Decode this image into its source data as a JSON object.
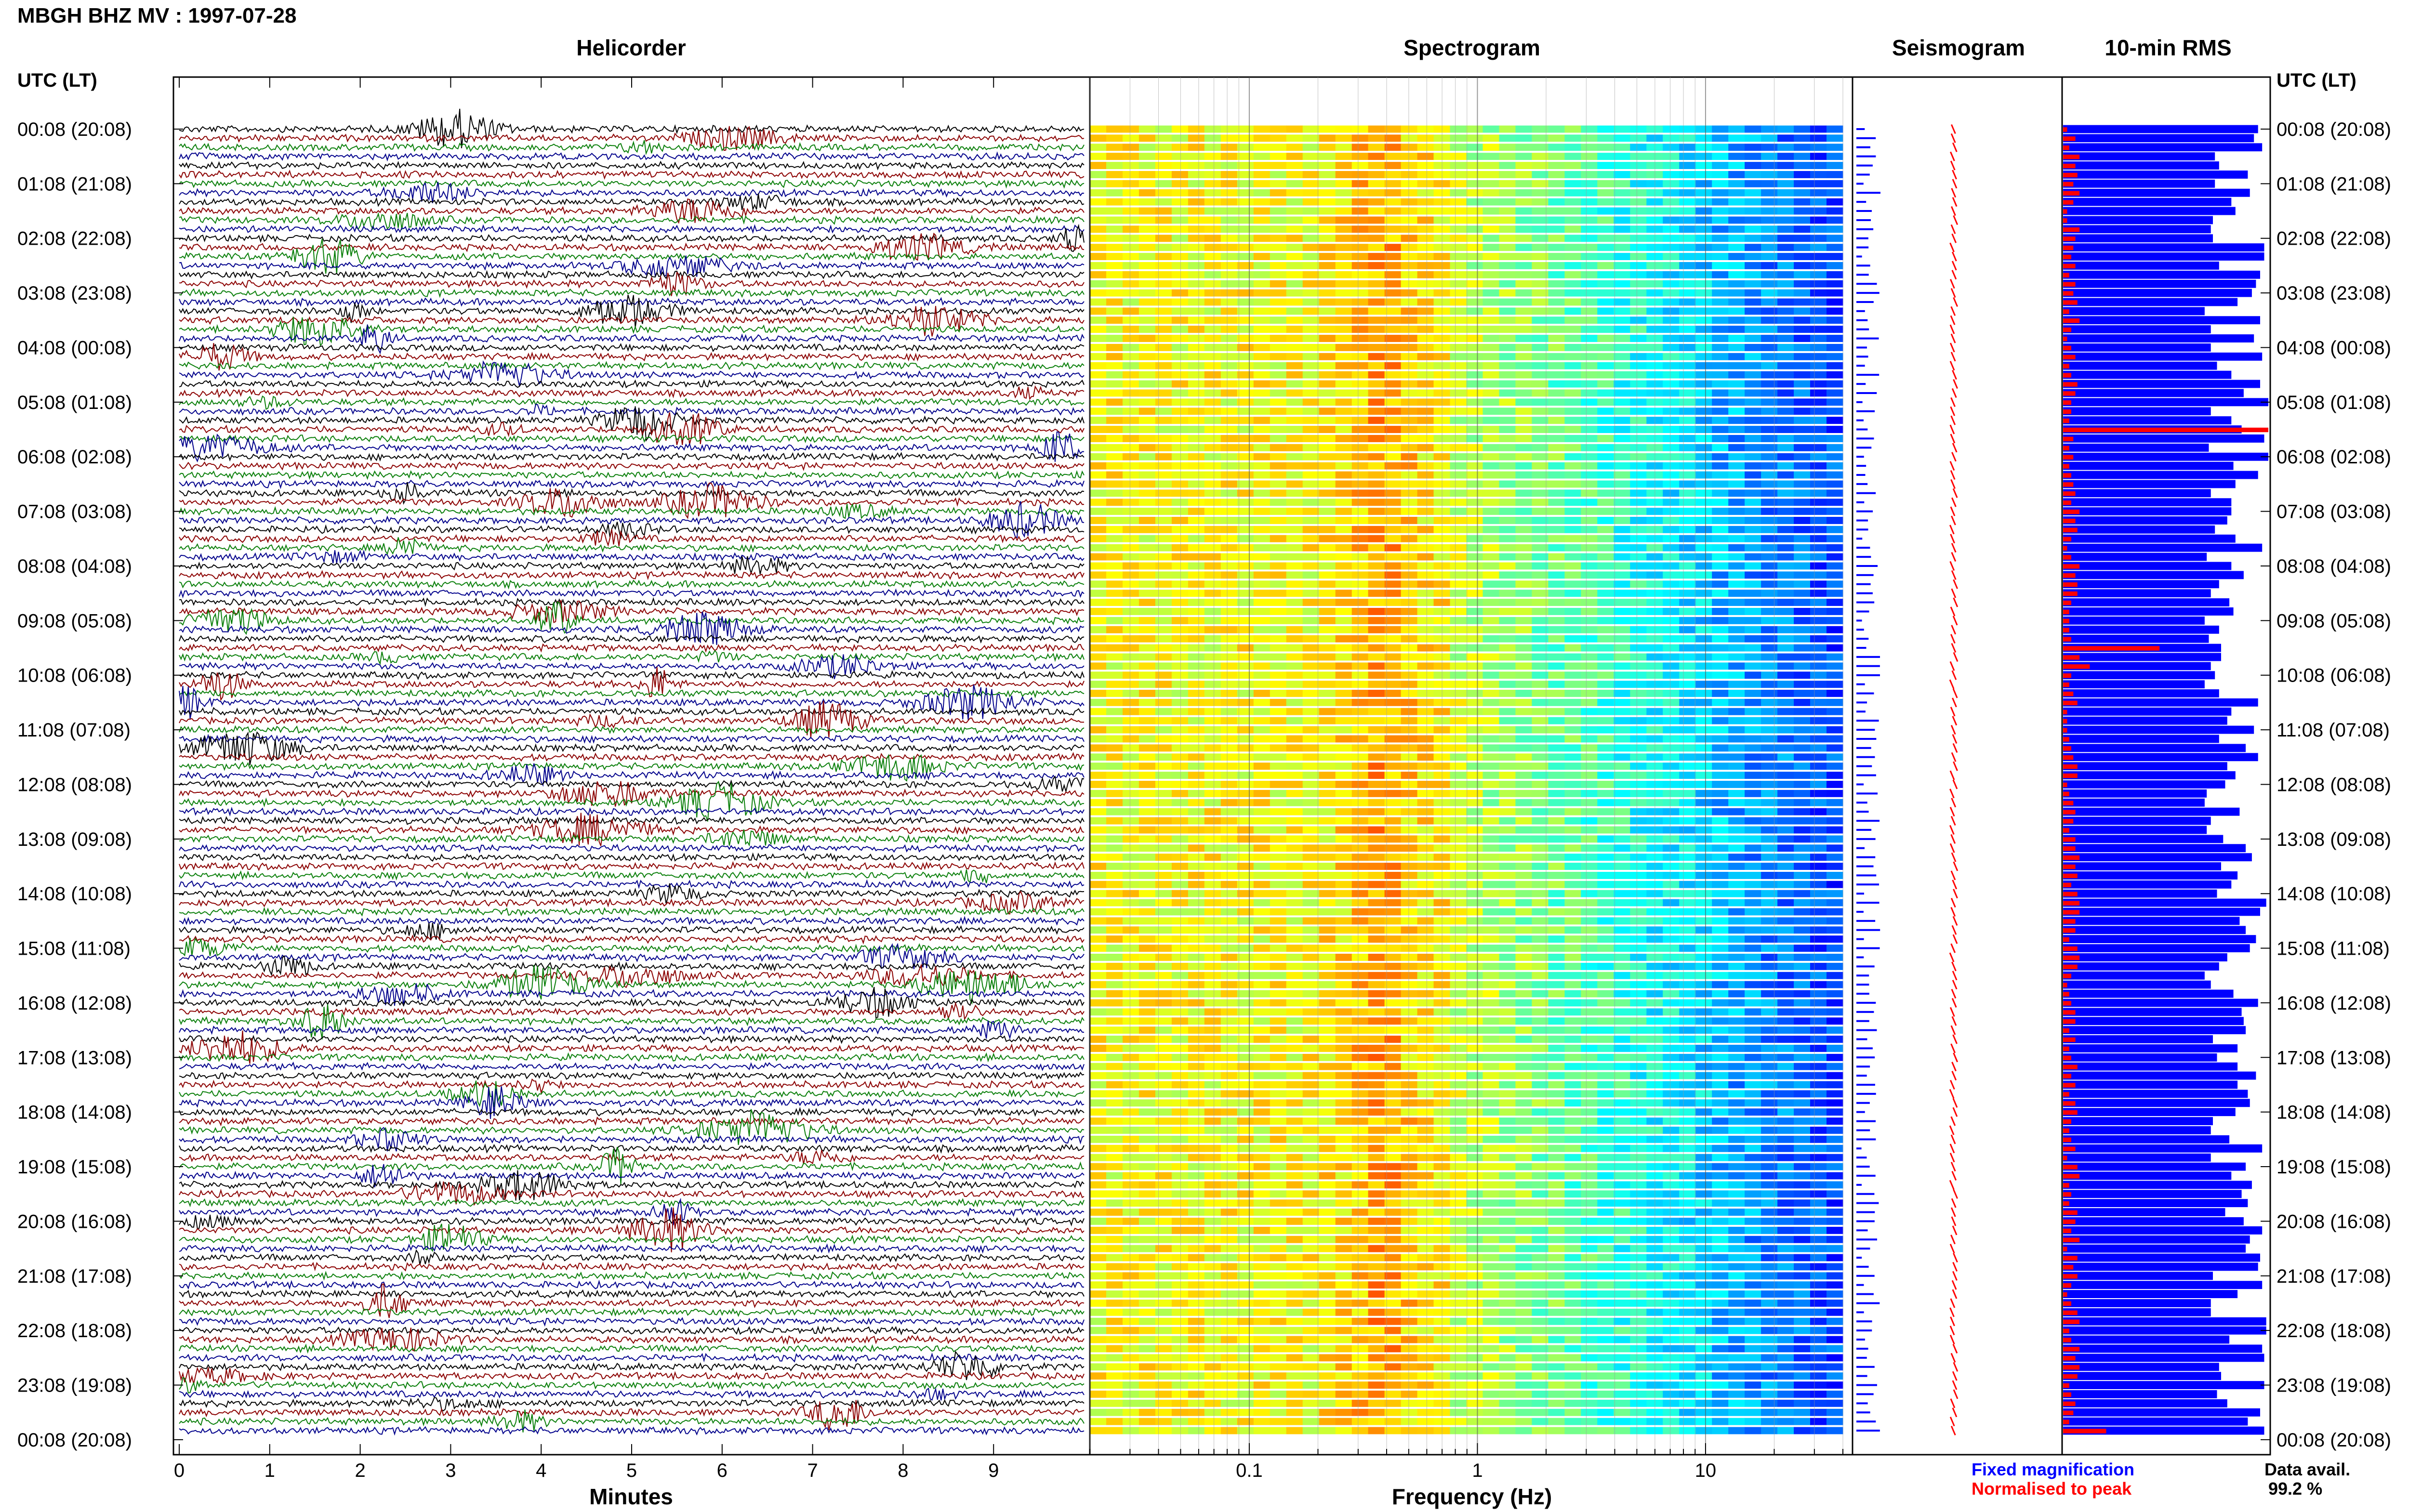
{
  "title": "MBGH BHZ MV : 1997-07-28",
  "panels": {
    "helicorder": "Helicorder",
    "spectrogram": "Spectrogram",
    "seismogram": "Seismogram",
    "rms": "10-min RMS"
  },
  "axis": {
    "left_label": "UTC (LT)",
    "right_label": "UTC (LT)",
    "helicorder_xlabel": "Minutes",
    "spectrogram_xlabel": "Frequency (Hz)"
  },
  "legend": {
    "fixed": "Fixed magnification",
    "normalised": "Normalised to peak",
    "data_avail_label": "Data avail.",
    "data_avail_value": "99.2 %"
  },
  "colors": {
    "trace_cycle": [
      "#000000",
      "#8b0000",
      "#0a7f0a",
      "#00008b"
    ],
    "fixed_magnification": "#0000ff",
    "normalised_to_peak": "#ff0000"
  },
  "chart_data": [
    {
      "type": "line",
      "name": "helicorder",
      "xlabel": "Minutes",
      "xlim": [
        0,
        10
      ],
      "xticks": [
        0,
        1,
        2,
        3,
        4,
        5,
        6,
        7,
        8,
        9
      ],
      "ylabels": [
        "00:08 (20:08)",
        "01:08 (21:08)",
        "02:08 (22:08)",
        "03:08 (23:08)",
        "04:08 (00:08)",
        "05:08 (01:08)",
        "06:08 (02:08)",
        "07:08 (03:08)",
        "08:08 (04:08)",
        "09:08 (05:08)",
        "10:08 (06:08)",
        "11:08 (07:08)",
        "12:08 (08:08)",
        "13:08 (09:08)",
        "14:08 (10:08)",
        "15:08 (11:08)",
        "16:08 (12:08)",
        "17:08 (13:08)",
        "18:08 (14:08)",
        "19:08 (15:08)",
        "20:08 (16:08)",
        "21:08 (17:08)",
        "22:08 (18:08)",
        "23:08 (19:08)",
        "00:08 (20:08)"
      ],
      "traces_per_hour": 6,
      "trace_count": 144
    },
    {
      "type": "heatmap",
      "name": "spectrogram",
      "xlabel": "Frequency (Hz)",
      "xscale": "log",
      "xlim": [
        0.02,
        40
      ],
      "xticks": [
        0.1,
        1,
        10
      ],
      "colormap": "jet"
    },
    {
      "type": "line",
      "name": "seismogram",
      "rows": 144
    },
    {
      "type": "bar",
      "name": "10-min RMS",
      "orientation": "horizontal",
      "ylabels": [
        "00:08 (20:08)",
        "01:08 (21:08)",
        "02:08 (22:08)",
        "03:08 (23:08)",
        "04:08 (00:08)",
        "05:08 (01:08)",
        "06:08 (02:08)",
        "07:08 (03:08)",
        "08:08 (04:08)",
        "09:08 (05:08)",
        "10:08 (06:08)",
        "11:08 (07:08)",
        "12:08 (08:08)",
        "13:08 (09:08)",
        "14:08 (10:08)",
        "15:08 (11:08)",
        "16:08 (12:08)",
        "17:08 (13:08)",
        "18:08 (14:08)",
        "19:08 (15:08)",
        "20:08 (16:08)",
        "21:08 (17:08)",
        "22:08 (18:08)",
        "23:08 (19:08)",
        "00:08 (20:08)"
      ],
      "series": [
        {
          "name": "Fixed magnification",
          "values": [
            0.95,
            0.93,
            0.97,
            0.74,
            0.76,
            0.9,
            0.74,
            0.91,
            0.82,
            0.84,
            0.73,
            0.72,
            0.73,
            0.98,
            0.98,
            0.76,
            0.96,
            0.94,
            0.92,
            0.85,
            0.69,
            0.96,
            0.72,
            0.93,
            0.72,
            0.97,
            0.75,
            0.82,
            0.96,
            0.88,
            1,
            0.72,
            0.82,
            0.87,
            0.98,
            0.71,
            1,
            0.83,
            0.95,
            0.84,
            0.72,
            0.82,
            0.82,
            0.8,
            0.74,
            0.84,
            0.97,
            0.7,
            0.82,
            0.88,
            0.76,
            0.72,
            0.81,
            0.83,
            0.69,
            0.76,
            0.71,
            0.77,
            0.77,
            0.72,
            0.74,
            0.69,
            0.76,
            0.95,
            0.82,
            0.8,
            0.93,
            0.76,
            0.89,
            0.95,
            0.8,
            0.84,
            0.79,
            0.7,
            0.69,
            0.86,
            0.72,
            0.7,
            0.78,
            0.89,
            0.92,
            0.77,
            0.85,
            0.82,
            0.75,
            0.99,
            0.96,
            0.86,
            0.89,
            0.94,
            0.91,
            0.8,
            0.76,
            0.69,
            0.72,
            0.83,
            0.95,
            0.87,
            0.88,
            0.89,
            0.73,
            0.85,
            0.75,
            0.85,
            0.94,
            0.85,
            0.9,
            0.91,
            0.84,
            0.73,
            0.72,
            0.81,
            0.97,
            0.72,
            0.89,
            0.82,
            0.92,
            0.87,
            0.9,
            0.79,
            0.88,
            0.97,
            0.91,
            0.89,
            0.96,
            0.95,
            0.73,
            0.97,
            0.85,
            0.72,
            0.72,
            0.99,
            0.99,
            0.81,
            0.97,
            0.98,
            0.76,
            0.77,
            0.98,
            0.75,
            0.8,
            0.96,
            0.9,
            0.98
          ]
        },
        {
          "name": "Normalised to peak",
          "values": [
            0.02,
            0.06,
            0.03,
            0.08,
            0.06,
            0.07,
            0.05,
            0.08,
            0.05,
            0.02,
            0.02,
            0.08,
            0.06,
            0.05,
            0.04,
            0.06,
            0.03,
            0.06,
            0.05,
            0.07,
            0.03,
            0.08,
            0.04,
            0.02,
            0.04,
            0.06,
            0.03,
            0.04,
            0.07,
            0.06,
            0.04,
            0.04,
            0.03,
            1,
            0.05,
            0.03,
            0.05,
            0.03,
            0.04,
            0.05,
            0.06,
            0.04,
            0.08,
            0.06,
            0.07,
            0.04,
            0.02,
            0.04,
            0.08,
            0.06,
            0.07,
            0.07,
            0.04,
            0.03,
            0.03,
            0.03,
            0.04,
            0.47,
            0.08,
            0.13,
            0.04,
            0.03,
            0.05,
            0.07,
            0.02,
            0.02,
            0.02,
            0.03,
            0.04,
            0.05,
            0.07,
            0.07,
            0.02,
            0.03,
            0.05,
            0.06,
            0.05,
            0.03,
            0.06,
            0.06,
            0.08,
            0.06,
            0.07,
            0.04,
            0.07,
            0.08,
            0.08,
            0.06,
            0.06,
            0.03,
            0.07,
            0.08,
            0.07,
            0.04,
            0.02,
            0.03,
            0.04,
            0.06,
            0.06,
            0.03,
            0.06,
            0.03,
            0.04,
            0.07,
            0.04,
            0.06,
            0.03,
            0.06,
            0.07,
            0.04,
            0.03,
            0.04,
            0.06,
            0.02,
            0.07,
            0.08,
            0.03,
            0.04,
            0.03,
            0.07,
            0.06,
            0.04,
            0.08,
            0.02,
            0.07,
            0.05,
            0.07,
            0.04,
            0.02,
            0.04,
            0.07,
            0.08,
            0.03,
            0.04,
            0.08,
            0.06,
            0.08,
            0.07,
            0.03,
            0.04,
            0.06,
            0.05,
            0.03,
            0.21
          ]
        }
      ]
    }
  ]
}
